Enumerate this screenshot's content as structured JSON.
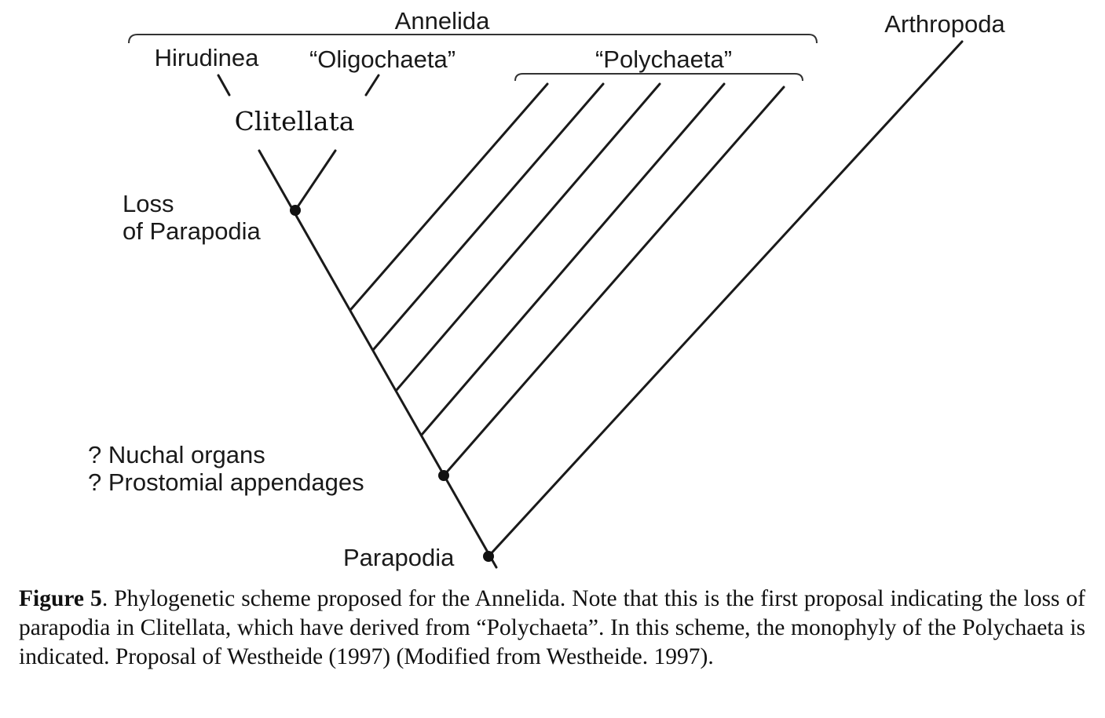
{
  "diagram": {
    "labels": {
      "annelida": "Annelida",
      "arthropoda": "Arthropoda",
      "hirudinea": "Hirudinea",
      "oligochaeta": "“Oligochaeta”",
      "polychaeta": "“Polychaeta”",
      "clitellata": "Clitellata",
      "loss_line1": "Loss",
      "loss_line2": "of Parapodia",
      "nuchal": "? Nuchal organs",
      "prostomial": "? Prostomial appendages",
      "parapodia": "Parapodia"
    }
  },
  "caption": {
    "figure_label": "Figure 5",
    "text": ". Phylogenetic scheme proposed for the Annelida. Note that this is the first proposal indicating the loss of parapodia in Clitellata, which have derived from “Polychaeta”. In this scheme, the monophyly of the Polychaeta is indicated. Proposal of Westheide (1997) (Modified from Westheide. 1997)."
  }
}
